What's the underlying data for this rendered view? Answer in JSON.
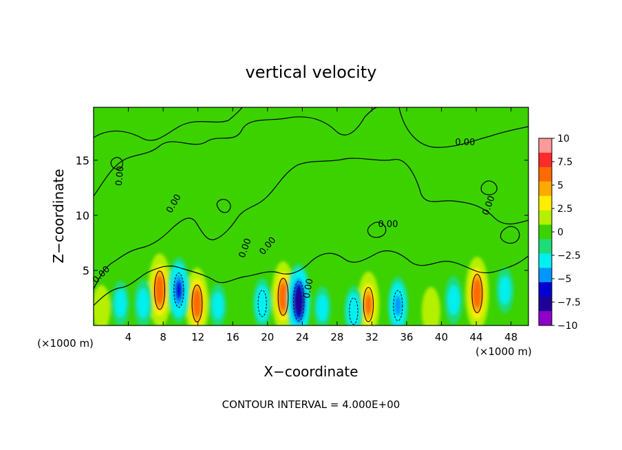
{
  "chart_data": {
    "type": "heatmap",
    "title": "vertical velocity",
    "xlabel": "X−coordinate",
    "ylabel": "Z−coordinate",
    "x_unit_label": "(×1000 m)",
    "x_unit_label_right": "(×1000 m)",
    "footer": "CONTOUR INTERVAL = 4.000E+00",
    "xlim": [
      0,
      50
    ],
    "ylim": [
      0,
      19.8
    ],
    "x_ticks": [
      4,
      8,
      12,
      16,
      20,
      24,
      28,
      32,
      36,
      40,
      44,
      48
    ],
    "x_tick_labels": [
      "4",
      "8",
      "12",
      "16",
      "20",
      "24",
      "28",
      "32",
      "36",
      "40",
      "44",
      "48"
    ],
    "y_ticks": [
      5,
      10,
      15
    ],
    "y_tick_labels": [
      "5",
      "10",
      "15"
    ],
    "colorbar": {
      "min": -10,
      "max": 10,
      "tick_values": [
        10,
        7.5,
        5,
        2.5,
        0,
        -2.5,
        -5,
        -7.5,
        -10
      ],
      "tick_labels": [
        "10",
        "7.5",
        "5",
        "2.5",
        "0",
        "−2.5",
        "−5",
        "−7.5",
        "−10"
      ],
      "colors": [
        "#ff9a9a",
        "#ff2a2a",
        "#ff6a00",
        "#ffaa00",
        "#ffee00",
        "#b4f000",
        "#3cd200",
        "#1edc78",
        "#00f0f0",
        "#0096ff",
        "#0000d2",
        "#1e0096",
        "#8c00c8"
      ]
    },
    "contour_labels": [
      "0.00",
      "0.00",
      "0.00",
      "0.00",
      "0.00",
      "0.00",
      "0.00",
      "0.00",
      "0.00"
    ],
    "features": [
      {
        "x": 7.6,
        "z": 3.2,
        "value": 8.5
      },
      {
        "x": 11.9,
        "z": 2.0,
        "value": 8.0
      },
      {
        "x": 21.8,
        "z": 2.6,
        "value": 8.0
      },
      {
        "x": 31.6,
        "z": 1.9,
        "value": 7.0
      },
      {
        "x": 44.1,
        "z": 2.9,
        "value": 8.5
      },
      {
        "x": 38.8,
        "z": 1.3,
        "value": 3.5
      },
      {
        "x": 0.9,
        "z": 1.6,
        "value": 3.0
      },
      {
        "x": 9.8,
        "z": 3.2,
        "value": -7.0
      },
      {
        "x": 23.6,
        "z": 2.2,
        "value": -9.0
      },
      {
        "x": 35.0,
        "z": 1.8,
        "value": -5.5
      },
      {
        "x": 29.9,
        "z": 1.3,
        "value": -4.0
      },
      {
        "x": 3.1,
        "z": 2.0,
        "value": -3.0
      },
      {
        "x": 19.4,
        "z": 2.0,
        "value": -4.0
      },
      {
        "x": 41.4,
        "z": 2.3,
        "value": -3.5
      },
      {
        "x": 47.3,
        "z": 3.2,
        "value": -3.0
      },
      {
        "x": 5.7,
        "z": 2.0,
        "value": -3.5
      },
      {
        "x": 14.3,
        "z": 1.8,
        "value": -2.5
      },
      {
        "x": 26.3,
        "z": 1.6,
        "value": -2.5
      }
    ]
  }
}
